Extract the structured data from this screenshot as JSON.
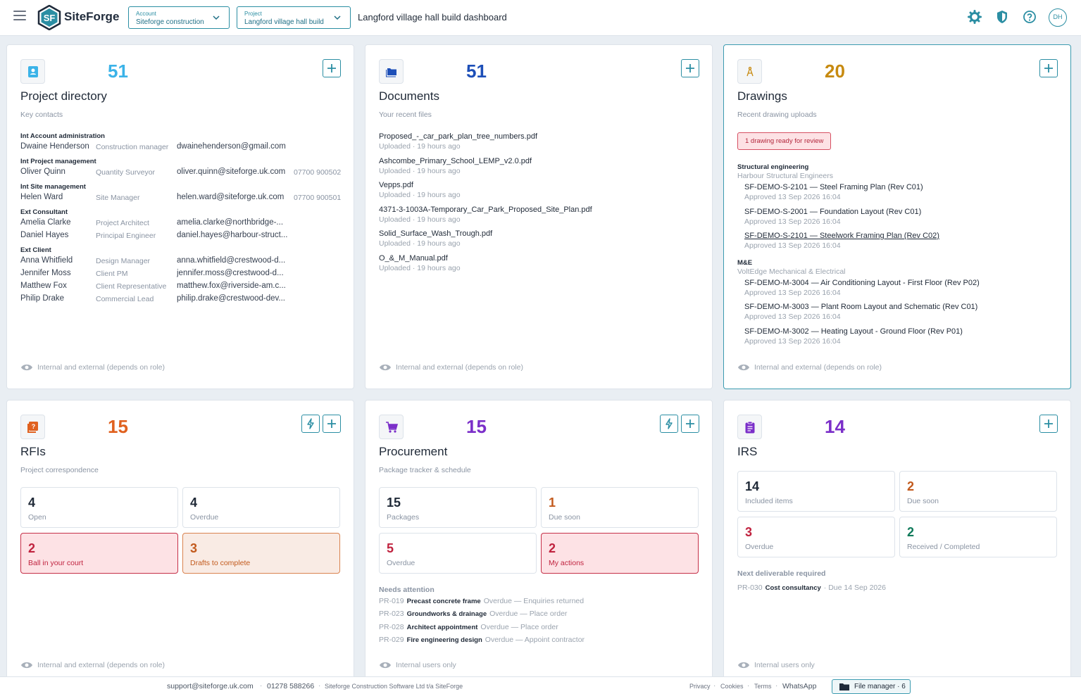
{
  "header": {
    "brand": "SiteForge",
    "account": {
      "label": "Account",
      "value": "Siteforge construction"
    },
    "project": {
      "label": "Project",
      "value": "Langford village hall build"
    },
    "title": "Langford village hall build dashboard",
    "avatar_initials": "DH",
    "icons": [
      "menu-icon",
      "gear-icon",
      "shield-icon",
      "help-icon"
    ],
    "accent_color": "#2b8ea3"
  },
  "directory": {
    "count": "51",
    "title": "Project directory",
    "subtitle": "Key contacts",
    "footer": "Internal and external (depends on role)",
    "groups": [
      {
        "name": "Int Account administration",
        "people": [
          {
            "name": "Dwaine Henderson",
            "role": "Construction manager",
            "email": "dwainehenderson@gmail.com",
            "phone": ""
          }
        ]
      },
      {
        "name": "Int Project management",
        "people": [
          {
            "name": "Oliver Quinn",
            "role": "Quantity Surveyor",
            "email": "oliver.quinn@siteforge.uk.com",
            "phone": "07700 900502"
          }
        ]
      },
      {
        "name": "Int Site management",
        "people": [
          {
            "name": "Helen Ward",
            "role": "Site Manager",
            "email": "helen.ward@siteforge.uk.com",
            "phone": "07700 900501"
          }
        ]
      },
      {
        "name": "Ext Consultant",
        "people": [
          {
            "name": "Amelia Clarke",
            "role": "Project Architect",
            "email": "amelia.clarke@northbridge-...",
            "phone": ""
          },
          {
            "name": "Daniel Hayes",
            "role": "Principal Engineer",
            "email": "daniel.hayes@harbour-struct...",
            "phone": ""
          }
        ]
      },
      {
        "name": "Ext Client",
        "people": [
          {
            "name": "Anna Whitfield",
            "role": "Design Manager",
            "email": "anna.whitfield@crestwood-d...",
            "phone": ""
          },
          {
            "name": "Jennifer Moss",
            "role": "Client PM",
            "email": "jennifer.moss@crestwood-d...",
            "phone": ""
          },
          {
            "name": "Matthew Fox",
            "role": "Client Representative",
            "email": "matthew.fox@riverside-am.c...",
            "phone": ""
          },
          {
            "name": "Philip Drake",
            "role": "Commercial Lead",
            "email": "philip.drake@crestwood-dev...",
            "phone": ""
          }
        ]
      }
    ]
  },
  "documents": {
    "count": "51",
    "title": "Documents",
    "subtitle": "Your recent files",
    "footer": "Internal and external (depends on role)",
    "files": [
      {
        "name": "Proposed_-_car_park_plan_tree_numbers.pdf",
        "meta": "Uploaded · 19 hours ago"
      },
      {
        "name": "Ashcombe_Primary_School_LEMP_v2.0.pdf",
        "meta": "Uploaded · 19 hours ago"
      },
      {
        "name": "Vepps.pdf",
        "meta": "Uploaded · 19 hours ago"
      },
      {
        "name": "4371-3-1003A-Temporary_Car_Park_Proposed_Site_Plan.pdf",
        "meta": "Uploaded · 19 hours ago"
      },
      {
        "name": "Solid_Surface_Wash_Trough.pdf",
        "meta": "Uploaded · 19 hours ago"
      },
      {
        "name": "O_&_M_Manual.pdf",
        "meta": "Uploaded · 19 hours ago"
      }
    ]
  },
  "drawings": {
    "count": "20",
    "title": "Drawings",
    "subtitle": "Recent drawing uploads",
    "review_badge": "1 drawing ready for review",
    "footer": "Internal and external (depends on role)",
    "groups": [
      {
        "discipline": "Structural engineering",
        "company": "Harbour Structural Engineers",
        "items": [
          {
            "name": "SF-DEMO-S-2101 — Steel Framing Plan (Rev C01)",
            "meta": "Approved 13 Sep 2026 16:04"
          },
          {
            "name": "SF-DEMO-S-2001 — Foundation Layout (Rev C01)",
            "meta": "Approved 13 Sep 2026 16:04"
          },
          {
            "name": "SF-DEMO-S-2101 — Steelwork Framing Plan (Rev C02)",
            "meta": "Approved 13 Sep 2026 16:04"
          }
        ]
      },
      {
        "discipline": "M&E",
        "company": "VoltEdge Mechanical & Electrical",
        "items": [
          {
            "name": "SF-DEMO-M-3004 — Air Conditioning Layout - First Floor (Rev P02)",
            "meta": "Approved 13 Sep 2026 16:04"
          },
          {
            "name": "SF-DEMO-M-3003 — Plant Room Layout and Schematic (Rev C01)",
            "meta": "Approved 13 Sep 2026 16:04"
          },
          {
            "name": "SF-DEMO-M-3002 — Heating Layout - Ground Floor (Rev P01)",
            "meta": "Approved 13 Sep 2026 16:04"
          }
        ]
      }
    ]
  },
  "rfis": {
    "count": "15",
    "title": "RFIs",
    "subtitle": "Project correspondence",
    "footer": "Internal and external (depends on role)",
    "tiles": [
      {
        "value": "4",
        "label": "Open"
      },
      {
        "value": "4",
        "label": "Overdue"
      },
      {
        "value": "2",
        "label": "Ball in your court"
      },
      {
        "value": "3",
        "label": "Drafts to complete"
      }
    ]
  },
  "procurement": {
    "count": "15",
    "title": "Procurement",
    "subtitle": "Package tracker & schedule",
    "footer": "Internal users only",
    "tiles": [
      {
        "value": "15",
        "label": "Packages"
      },
      {
        "value": "1",
        "label": "Due soon"
      },
      {
        "value": "5",
        "label": "Overdue"
      },
      {
        "value": "2",
        "label": "My actions"
      }
    ],
    "needs_title": "Needs attention",
    "needs": [
      {
        "id": "PR-019",
        "name": "Precast concrete frame",
        "status": "Overdue — Enquiries returned"
      },
      {
        "id": "PR-023",
        "name": "Groundworks & drainage",
        "status": "Overdue — Place order"
      },
      {
        "id": "PR-028",
        "name": "Architect appointment",
        "status": "Overdue — Place order"
      },
      {
        "id": "PR-029",
        "name": "Fire engineering design",
        "status": "Overdue — Appoint contractor"
      }
    ]
  },
  "irs": {
    "count": "14",
    "title": "IRS",
    "footer": "Internal users only",
    "tiles": [
      {
        "value": "14",
        "label": "Included items"
      },
      {
        "value": "2",
        "label": "Due soon"
      },
      {
        "value": "3",
        "label": "Overdue"
      },
      {
        "value": "2",
        "label": "Received / Completed"
      }
    ],
    "next_title": "Next deliverable required",
    "next": {
      "id": "PR-030",
      "name": "Cost consultancy",
      "due": "· Due 14 Sep 2026"
    }
  },
  "footer": {
    "email": "support@siteforge.uk.com",
    "phone": "01278 588266",
    "company": "Siteforge Construction Software Ltd t/a SiteForge",
    "links": [
      "Privacy",
      "Cookies",
      "Terms",
      "WhatsApp"
    ],
    "file_manager": "File manager · 6"
  },
  "colors": {
    "directory": "#3bb3e8",
    "documents": "#1d4fb8",
    "drawings": "#c78a10",
    "rfis": "#e0611f",
    "procurement": "#7b2fc9",
    "irs": "#7b2fc9"
  }
}
